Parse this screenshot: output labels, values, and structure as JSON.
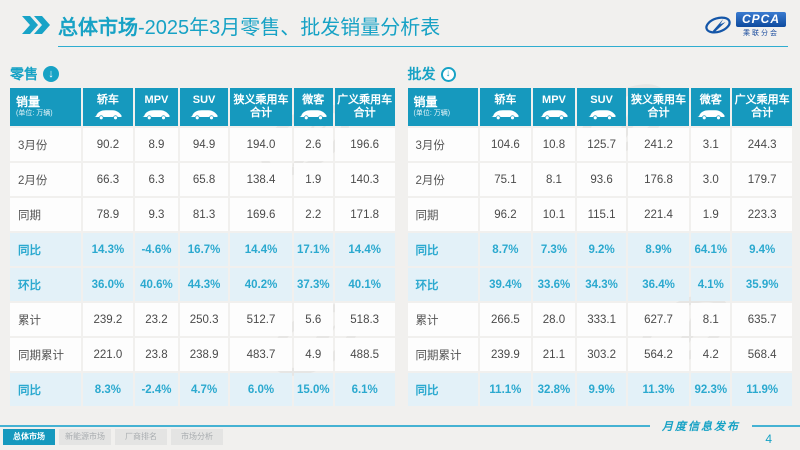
{
  "title": {
    "prefix": "总体市场",
    "rest": "-2025年3月零售、批发销量分析表"
  },
  "logo": {
    "text": "CPCA",
    "subtext": "乘联分会"
  },
  "tables": [
    {
      "section_label": "零售",
      "section_icon": "arrow-down-circle-filled-icon",
      "header_first": {
        "title": "销量",
        "unit": "(单位: 万辆)"
      },
      "columns": [
        {
          "label": "轿车",
          "icon": "sedan-car-icon"
        },
        {
          "label": "MPV",
          "icon": "mpv-car-icon"
        },
        {
          "label": "SUV",
          "icon": "suv-car-icon"
        },
        {
          "label": "狭义乘用车合计",
          "icon": null
        },
        {
          "label": "微客",
          "icon": "microvan-icon"
        },
        {
          "label": "广义乘用车合计",
          "icon": null
        }
      ],
      "rows": [
        {
          "label": "3月份",
          "type": "normal",
          "values": [
            "90.2",
            "8.9",
            "94.9",
            "194.0",
            "2.6",
            "196.6"
          ]
        },
        {
          "label": "2月份",
          "type": "normal",
          "values": [
            "66.3",
            "6.3",
            "65.8",
            "138.4",
            "1.9",
            "140.3"
          ]
        },
        {
          "label": "同期",
          "type": "normal",
          "values": [
            "78.9",
            "9.3",
            "81.3",
            "169.6",
            "2.2",
            "171.8"
          ]
        },
        {
          "label": "同比",
          "type": "highlight",
          "values": [
            "14.3%",
            "-4.6%",
            "16.7%",
            "14.4%",
            "17.1%",
            "14.4%"
          ]
        },
        {
          "label": "环比",
          "type": "highlight",
          "values": [
            "36.0%",
            "40.6%",
            "44.3%",
            "40.2%",
            "37.3%",
            "40.1%"
          ]
        },
        {
          "label": "累计",
          "type": "normal",
          "values": [
            "239.2",
            "23.2",
            "250.3",
            "512.7",
            "5.6",
            "518.3"
          ]
        },
        {
          "label": "同期累计",
          "type": "normal",
          "values": [
            "221.0",
            "23.8",
            "238.9",
            "483.7",
            "4.9",
            "488.5"
          ]
        },
        {
          "label": "同比",
          "type": "highlight",
          "values": [
            "8.3%",
            "-2.4%",
            "4.7%",
            "6.0%",
            "15.0%",
            "6.1%"
          ]
        }
      ]
    },
    {
      "section_label": "批发",
      "section_icon": "arrow-down-circle-outline-icon",
      "header_first": {
        "title": "销量",
        "unit": "(单位: 万辆)"
      },
      "columns": [
        {
          "label": "轿车",
          "icon": "sedan-car-icon"
        },
        {
          "label": "MPV",
          "icon": "mpv-car-icon"
        },
        {
          "label": "SUV",
          "icon": "suv-car-icon"
        },
        {
          "label": "狭义乘用车合计",
          "icon": null
        },
        {
          "label": "微客",
          "icon": "microvan-icon"
        },
        {
          "label": "广义乘用车合计",
          "icon": null
        }
      ],
      "rows": [
        {
          "label": "3月份",
          "type": "normal",
          "values": [
            "104.6",
            "10.8",
            "125.7",
            "241.2",
            "3.1",
            "244.3"
          ]
        },
        {
          "label": "2月份",
          "type": "normal",
          "values": [
            "75.1",
            "8.1",
            "93.6",
            "176.8",
            "3.0",
            "179.7"
          ]
        },
        {
          "label": "同期",
          "type": "normal",
          "values": [
            "96.2",
            "10.1",
            "115.1",
            "221.4",
            "1.9",
            "223.3"
          ]
        },
        {
          "label": "同比",
          "type": "highlight",
          "values": [
            "8.7%",
            "7.3%",
            "9.2%",
            "8.9%",
            "64.1%",
            "9.4%"
          ]
        },
        {
          "label": "环比",
          "type": "highlight",
          "values": [
            "39.4%",
            "33.6%",
            "34.3%",
            "36.4%",
            "4.1%",
            "35.9%"
          ]
        },
        {
          "label": "累计",
          "type": "normal",
          "values": [
            "266.5",
            "28.0",
            "333.1",
            "627.7",
            "8.1",
            "635.7"
          ]
        },
        {
          "label": "同期累计",
          "type": "normal",
          "values": [
            "239.9",
            "21.1",
            "303.2",
            "564.2",
            "4.2",
            "568.4"
          ]
        },
        {
          "label": "同比",
          "type": "highlight",
          "values": [
            "11.1%",
            "32.8%",
            "9.9%",
            "11.3%",
            "92.3%",
            "11.9%"
          ]
        }
      ]
    }
  ],
  "footer": {
    "tabs": [
      {
        "label": "总体市场",
        "active": true
      },
      {
        "label": "新能源市场",
        "active": false
      },
      {
        "label": "厂商排名",
        "active": false
      },
      {
        "label": "市场分析",
        "active": false
      }
    ],
    "caption": "月度信息发布",
    "page_number": "4"
  },
  "colors": {
    "accent_teal": "#1699BE",
    "title_cyan": "#17A2C5",
    "highlight_bg": "#E3F1F8",
    "highlight_text": "#2BA9CF",
    "page_bg": "#F1F0EE",
    "logo_blue": "#1456A8",
    "footer_line": "#45B2D3"
  }
}
